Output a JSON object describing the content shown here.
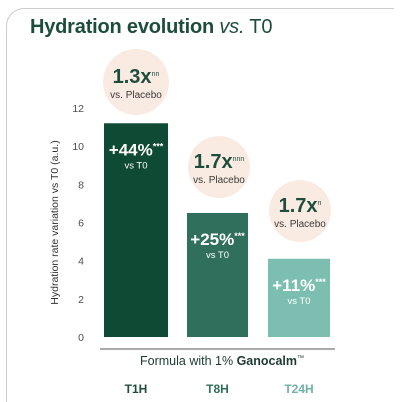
{
  "title": {
    "main": "Hydration evolution ",
    "vs": "vs.",
    "rest": " T0"
  },
  "footer": {
    "prefix": "Formula with 1% ",
    "brand": "Ganocalm",
    "tm": "™"
  },
  "colors": {
    "bar_t1h": "#0f4a35",
    "bar_t8h": "#2f6f5b",
    "bar_t24h": "#7cbfb0",
    "bubble": "#f9ebe1",
    "text_dark": "#1f4d3d",
    "axis_text": "#4d4d4d"
  },
  "chart_data": {
    "type": "bar",
    "title": "Hydration evolution vs. T0",
    "ylabel": "Hydration rate variation vs T0 (a.u.)",
    "xlabel": "Formula with 1% Ganocalm™",
    "ylim": [
      0,
      12
    ],
    "yticks": [
      0,
      2,
      4,
      6,
      8,
      10,
      12
    ],
    "grid": false,
    "categories": [
      "T1H",
      "T8H",
      "T24H"
    ],
    "values": [
      11.2,
      6.5,
      4.1
    ],
    "bar_labels": [
      {
        "pct": "+44%",
        "stars": "***",
        "sub": "vs T0"
      },
      {
        "pct": "+25%",
        "stars": "***",
        "sub": "vs T0"
      },
      {
        "pct": "+11%",
        "stars": "***",
        "sub": "vs T0"
      }
    ],
    "annotations": [
      {
        "ratio": "1.3x",
        "sig": "nn",
        "sub": "vs. Placebo"
      },
      {
        "ratio": "1.7x",
        "sig": "nnn",
        "sub": "vs. Placebo"
      },
      {
        "ratio": "1.7x",
        "sig": "n",
        "sub": "vs. Placebo"
      }
    ]
  }
}
